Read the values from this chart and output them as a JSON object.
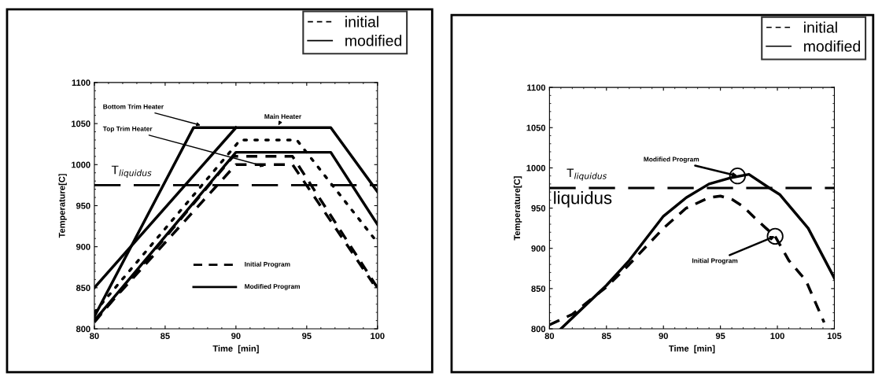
{
  "chart_data": [
    {
      "type": "line",
      "xlabel": "Time  [min]",
      "ylabel": "Temperature[C]",
      "xlim": [
        80,
        100
      ],
      "ylim": [
        800,
        1100
      ],
      "xticks": [
        80,
        85,
        90,
        95,
        100
      ],
      "yticks": [
        800,
        850,
        900,
        950,
        1000,
        1050,
        1100
      ],
      "grid": false,
      "legend": "top right",
      "marker": "none",
      "series": [
        {
          "name": "initial",
          "color": "#000000",
          "line_style": "dashed",
          "x": [
            80,
            89.8,
            94,
            100
          ],
          "values": [
            808,
            1010,
            1010,
            850
          ]
        },
        {
          "name": "modified",
          "color": "#000000",
          "line_style": "solid",
          "x": [
            80,
            87,
            96.7,
            100
          ],
          "values": [
            815,
            1045,
            1045,
            967
          ]
        },
        {
          "color": "#000000",
          "line_style": "solid",
          "x": [
            80,
            90
          ],
          "values": [
            850,
            1045
          ]
        },
        {
          "color": "#000000",
          "line_style": "solid",
          "x": [
            80,
            90,
            96.7,
            100
          ],
          "values": [
            810,
            1015,
            1015,
            927
          ]
        },
        {
          "color": "#000000",
          "line_style": "dashed",
          "x": [
            80,
            90,
            94,
            99.7
          ],
          "values": [
            810,
            1000,
            1000,
            855
          ]
        },
        {
          "color": "#000000",
          "line_style": "dotted",
          "x": [
            80,
            90.3,
            94.3,
            100
          ],
          "values": [
            820,
            1030,
            1030,
            905
          ]
        }
      ],
      "ref_lines": [
        {
          "axis": "y",
          "value": 975,
          "label": "T$_{liquidus}$",
          "line_style": "dashed"
        }
      ],
      "annotations": [
        {
          "text": "Bottom Trim Heater",
          "x": 87.5,
          "y": 1048
        },
        {
          "text": "Main Heater",
          "x": 93,
          "y": 1048
        },
        "Top Trim Heater",
        "Initial Program",
        "Modified Program"
      ]
    },
    {
      "type": "line",
      "xlabel": "Time  [min]",
      "ylabel": "Temperature[C]",
      "xlim": [
        80,
        105
      ],
      "ylim": [
        800,
        1100
      ],
      "xticks": [
        80,
        85,
        90,
        95,
        100,
        105
      ],
      "yticks": [
        800,
        850,
        900,
        950,
        1000,
        1050,
        1100
      ],
      "grid": false,
      "legend": "top right",
      "marker": "none",
      "series": [
        {
          "name": "initial",
          "color": "#000000",
          "line_style": "dashed",
          "x": [
            80,
            82,
            85,
            87,
            90,
            92,
            94,
            95,
            96,
            97,
            98,
            99,
            99.8,
            101,
            102.5,
            104.1
          ],
          "values": [
            805,
            818,
            852,
            880,
            925,
            950,
            963,
            965,
            961,
            952,
            938,
            925,
            915,
            885,
            860,
            808
          ]
        },
        {
          "name": "modified",
          "color": "#000000",
          "line_style": "solid",
          "x": [
            81,
            85,
            87,
            90,
            92,
            94,
            96,
            97.5,
            99.3,
            100.2,
            102.7,
            105
          ],
          "values": [
            800,
            854,
            885,
            940,
            963,
            980,
            988,
            992,
            975,
            967,
            925,
            863
          ]
        }
      ],
      "ref_lines": [
        {
          "axis": "y",
          "value": 975,
          "label": "T$_{liquidus}$",
          "line_style": "dashed"
        }
      ],
      "annotations": [
        {
          "text": "Modified Program",
          "x": 96.5,
          "y": 990
        },
        {
          "text": "Initial Program",
          "x": 99.8,
          "y": 915
        },
        "liquidus"
      ]
    }
  ]
}
